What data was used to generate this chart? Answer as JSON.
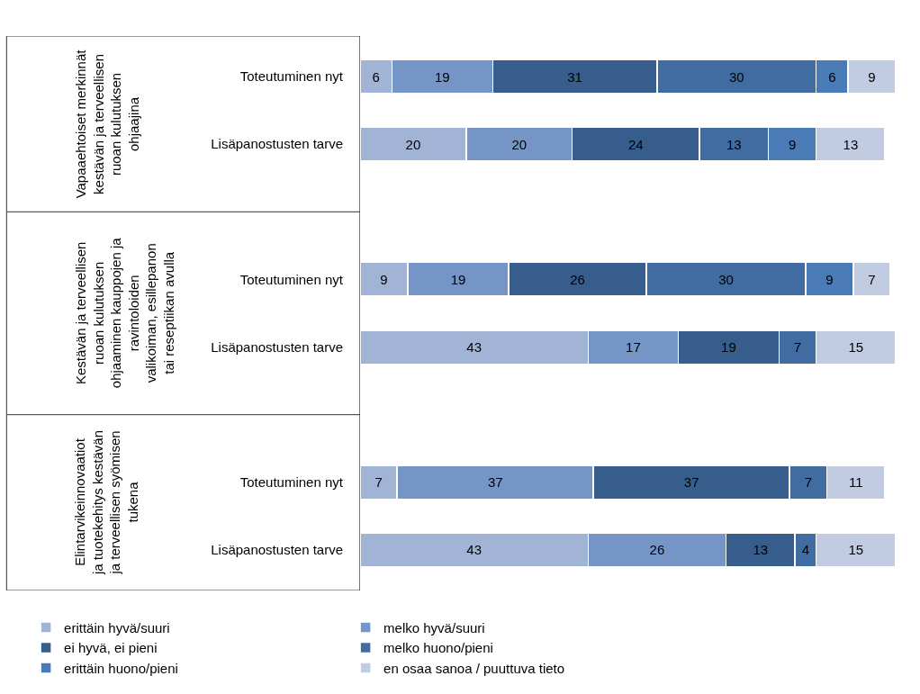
{
  "chart_data": {
    "type": "bar",
    "orientation": "horizontal",
    "stacked": true,
    "data_labels": true,
    "legend": "bottom",
    "categories": [
      "Toteutuminen nyt",
      "Lisäpanostusten tarve",
      "Toteutuminen nyt",
      "Lisäpanostusten tarve",
      "Toteutuminen nyt",
      "Lisäpanostusten tarve"
    ],
    "series": [
      {
        "name": "erittäin hyvä/suuri",
        "color": "#a2b4d6",
        "values": [
          6,
          20,
          9,
          43,
          7,
          43
        ]
      },
      {
        "name": "melko hyvä/suuri",
        "color": "#7495c6",
        "values": [
          19,
          20,
          19,
          17,
          37,
          26
        ]
      },
      {
        "name": "ei hyvä, ei pieni",
        "color": "#375d8c",
        "values": [
          31,
          24,
          26,
          19,
          37,
          13
        ]
      },
      {
        "name": "melko huono/pieni",
        "color": "#416ca1",
        "values": [
          30,
          13,
          30,
          7,
          7,
          4
        ]
      },
      {
        "name": "erittäin huono/pieni",
        "color": "#4a7bb7",
        "values": [
          6,
          9,
          9,
          null,
          null,
          null
        ]
      },
      {
        "name": "en osaa sanoa / puuttuva tieto",
        "color": "#c1cbe1",
        "values": [
          9,
          13,
          7,
          15,
          11,
          15
        ]
      }
    ],
    "annotations": [
      "Vapaaehtoiset merkinnät kestävän ja terveellisen ruoan kulutuksen ohjaajina",
      "Kestävän ja terveellisen ruoan kulutuksen ohjaaminen kauppojen ja ravintoloiden valikoiman, esillepanon tai reseptiikan avulla",
      "Elintarvikeinnovaatiot ja tuotekehitys kestävän ja terveellisen syömisen tukena"
    ]
  }
}
